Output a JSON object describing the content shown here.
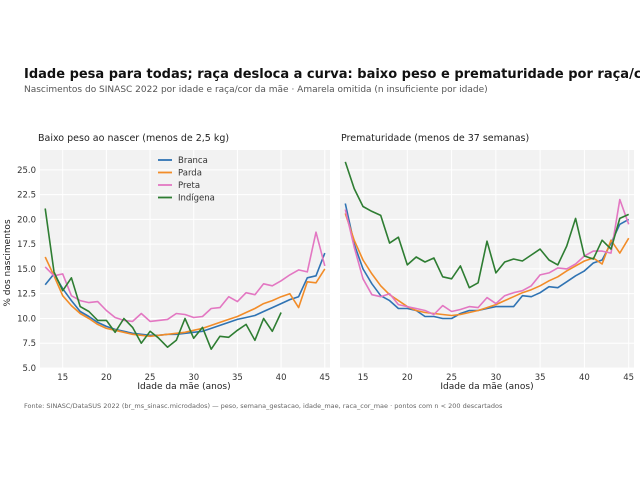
{
  "figure": {
    "title": "Idade pesa para todas; raça desloca a curva: baixo peso e prematuridade por raça/cor da mãe",
    "subtitle": "Nascimentos do SINASC 2022 por idade e raça/cor da mãe · Amarela omitida (n insuficiente por idade)",
    "caption": "Fonte: SINASC/DataSUS 2022 (br_ms_sinasc.microdados) — peso, semana_gestacao, idade_mae, raca_cor_mae · pontos com n < 200 descartados"
  },
  "colors": {
    "Branca": "#2f73b3",
    "Parda": "#f28c28",
    "Preta": "#e377c2",
    "Indígena": "#2e7d32",
    "panel_bg": "#f2f2f2",
    "grid": "#ffffff"
  },
  "chart_data": [
    {
      "type": "line",
      "title": "Baixo peso ao nascer (menos de 2,5 kg)",
      "xlabel": "Idade da mãe (anos)",
      "ylabel": "% dos nascimentos",
      "xlim": [
        12.4,
        45.6
      ],
      "ylim": [
        5.0,
        27.0
      ],
      "xticks": [
        15,
        20,
        25,
        30,
        35,
        40,
        45
      ],
      "yticks": [
        5.0,
        7.5,
        10.0,
        12.5,
        15.0,
        17.5,
        20.0,
        22.5,
        25.0
      ],
      "legend": "top-center",
      "grid": true,
      "series": [
        {
          "name": "Branca",
          "x": [
            13,
            14,
            15,
            16,
            17,
            18,
            19,
            20,
            21,
            22,
            23,
            24,
            25,
            26,
            27,
            28,
            29,
            30,
            31,
            32,
            33,
            34,
            35,
            36,
            37,
            38,
            39,
            40,
            41,
            42,
            43,
            44,
            45
          ],
          "y": [
            13.4,
            14.5,
            13.0,
            11.8,
            10.7,
            10.2,
            9.6,
            9.2,
            8.9,
            8.7,
            8.5,
            8.4,
            8.3,
            8.3,
            8.4,
            8.4,
            8.5,
            8.6,
            8.7,
            9.0,
            9.3,
            9.6,
            9.9,
            10.1,
            10.3,
            10.7,
            11.1,
            11.5,
            11.9,
            12.2,
            14.1,
            14.3,
            16.6
          ]
        },
        {
          "name": "Parda",
          "x": [
            13,
            14,
            15,
            16,
            17,
            18,
            19,
            20,
            21,
            22,
            23,
            24,
            25,
            26,
            27,
            28,
            29,
            30,
            31,
            32,
            33,
            34,
            35,
            36,
            37,
            38,
            39,
            40,
            41,
            42,
            43,
            44,
            45
          ],
          "y": [
            16.2,
            14.3,
            12.3,
            11.3,
            10.5,
            10.0,
            9.4,
            9.0,
            8.8,
            8.6,
            8.4,
            8.3,
            8.2,
            8.3,
            8.4,
            8.5,
            8.6,
            8.8,
            9.0,
            9.3,
            9.6,
            9.9,
            10.2,
            10.6,
            11.0,
            11.5,
            11.8,
            12.2,
            12.5,
            11.1,
            13.7,
            13.6,
            15.0
          ]
        },
        {
          "name": "Preta",
          "x": [
            13,
            14,
            15,
            16,
            17,
            18,
            19,
            20,
            21,
            22,
            23,
            24,
            25,
            26,
            27,
            28,
            29,
            30,
            31,
            32,
            33,
            34,
            35,
            36,
            37,
            38,
            39,
            40,
            41,
            42,
            43,
            44,
            45
          ],
          "y": [
            15.2,
            14.3,
            14.5,
            12.3,
            11.8,
            11.6,
            11.7,
            10.8,
            10.1,
            9.8,
            9.7,
            10.5,
            9.7,
            9.8,
            9.9,
            10.5,
            10.4,
            10.1,
            10.2,
            11.0,
            11.1,
            12.2,
            11.7,
            12.6,
            12.4,
            13.5,
            13.3,
            13.8,
            14.4,
            14.9,
            14.7,
            18.7,
            15.3
          ]
        },
        {
          "name": "Indígena",
          "x": [
            13,
            14,
            15,
            16,
            17,
            18,
            19,
            20,
            21,
            22,
            23,
            24,
            25,
            26,
            27,
            28,
            29,
            30,
            31,
            32,
            33,
            34,
            35,
            36,
            37,
            38,
            39,
            40
          ],
          "y": [
            21.1,
            14.7,
            12.8,
            14.1,
            11.2,
            10.7,
            9.8,
            9.8,
            8.6,
            10.0,
            9.1,
            7.5,
            8.7,
            8.0,
            7.1,
            7.8,
            10.0,
            8.0,
            9.1,
            6.9,
            8.2,
            8.1,
            8.8,
            9.4,
            7.8,
            10.0,
            8.7,
            10.6
          ]
        }
      ]
    },
    {
      "type": "line",
      "title": "Prematuridade (menos de 37 semanas)",
      "xlabel": "Idade da mãe (anos)",
      "xlim": [
        12.4,
        45.6
      ],
      "ylim": [
        5.0,
        27.0
      ],
      "xticks": [
        15,
        20,
        25,
        30,
        35,
        40,
        45
      ],
      "yticks": [],
      "grid": true,
      "series": [
        {
          "name": "Branca",
          "x": [
            13,
            14,
            15,
            16,
            17,
            18,
            19,
            20,
            21,
            22,
            23,
            24,
            25,
            26,
            27,
            28,
            29,
            30,
            31,
            32,
            33,
            34,
            35,
            36,
            37,
            38,
            39,
            40,
            41,
            42,
            43,
            44,
            45
          ],
          "y": [
            21.6,
            17.5,
            15.0,
            13.5,
            12.3,
            11.8,
            11.0,
            11.0,
            10.8,
            10.2,
            10.2,
            10.0,
            10.0,
            10.5,
            10.8,
            10.8,
            11.0,
            11.2,
            11.2,
            11.2,
            12.3,
            12.2,
            12.6,
            13.2,
            13.1,
            13.7,
            14.3,
            14.8,
            15.6,
            15.9,
            17.6,
            19.5,
            20.0
          ]
        },
        {
          "name": "Parda",
          "x": [
            13,
            14,
            15,
            16,
            17,
            18,
            19,
            20,
            21,
            22,
            23,
            24,
            25,
            26,
            27,
            28,
            29,
            30,
            31,
            32,
            33,
            34,
            35,
            36,
            37,
            38,
            39,
            40,
            41,
            42,
            43,
            44,
            45
          ],
          "y": [
            20.6,
            17.9,
            15.9,
            14.5,
            13.3,
            12.4,
            11.8,
            11.2,
            10.8,
            10.6,
            10.5,
            10.4,
            10.3,
            10.4,
            10.6,
            10.8,
            11.1,
            11.4,
            11.8,
            12.2,
            12.6,
            12.9,
            13.3,
            13.8,
            14.2,
            14.8,
            15.3,
            15.8,
            16.1,
            15.5,
            17.9,
            16.6,
            18.1
          ]
        },
        {
          "name": "Preta",
          "x": [
            13,
            14,
            15,
            16,
            17,
            18,
            19,
            20,
            21,
            22,
            23,
            24,
            25,
            26,
            27,
            28,
            29,
            30,
            31,
            32,
            33,
            34,
            35,
            36,
            37,
            38,
            39,
            40,
            41,
            42,
            43,
            44,
            45
          ],
          "y": [
            21.0,
            17.2,
            14.0,
            12.4,
            12.2,
            12.5,
            11.4,
            11.2,
            11.0,
            10.8,
            10.4,
            11.3,
            10.7,
            10.9,
            11.2,
            11.1,
            12.1,
            11.5,
            12.3,
            12.6,
            12.8,
            13.3,
            14.4,
            14.6,
            15.1,
            15.0,
            15.5,
            16.3,
            16.8,
            16.8,
            16.6,
            22.0,
            19.5
          ]
        },
        {
          "name": "Indígena",
          "x": [
            13,
            14,
            15,
            16,
            17,
            18,
            19,
            20,
            21,
            22,
            23,
            24,
            25,
            26,
            27,
            28,
            29,
            30,
            31,
            32,
            33,
            34,
            35,
            36,
            37,
            38,
            39,
            40,
            41,
            42,
            43,
            44,
            45
          ],
          "y": [
            25.8,
            23.1,
            21.3,
            20.8,
            20.4,
            17.6,
            18.2,
            15.4,
            16.2,
            15.7,
            16.1,
            14.2,
            14.0,
            15.3,
            13.1,
            13.6,
            17.8,
            14.6,
            15.7,
            16.0,
            15.8,
            16.4,
            17.0,
            15.9,
            15.4,
            17.3,
            20.1,
            16.3,
            16.0,
            17.9,
            17.0,
            20.1,
            20.5
          ]
        }
      ]
    }
  ]
}
